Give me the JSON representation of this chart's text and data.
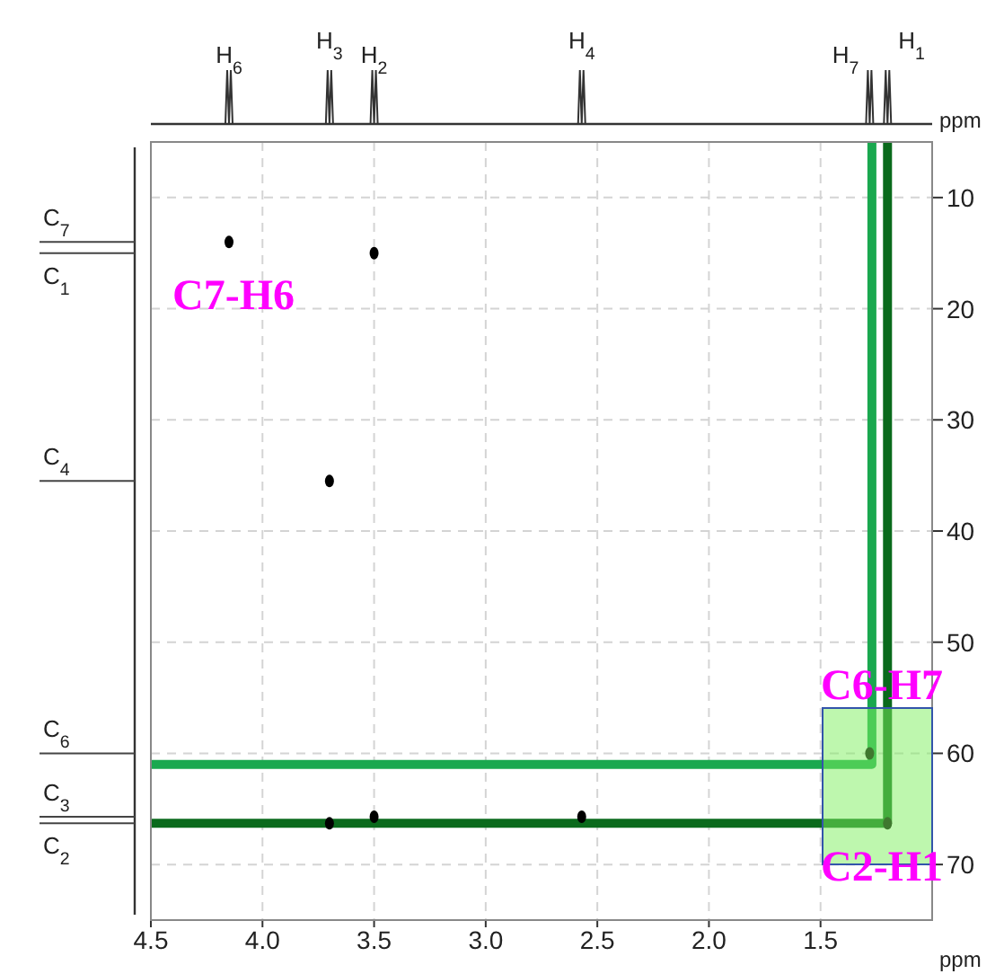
{
  "chart_data": {
    "type": "scatter",
    "xlabel": "ppm",
    "ylabel": "ppm",
    "xlim": [
      4.5,
      1.0
    ],
    "ylim": [
      75,
      5
    ],
    "xticks": [
      4.5,
      {
        "value": 4,
        "label": "4.0"
      },
      3.5,
      {
        "value": 3,
        "label": "3.0"
      },
      2.5,
      {
        "value": 2,
        "label": "2.0"
      },
      1.5
    ],
    "yticks": [
      10,
      20,
      30,
      40,
      50,
      60,
      70
    ],
    "grid": true,
    "series": [
      {
        "type": "line",
        "color": "#1aa84f",
        "marker": "none",
        "x": [
          4.5,
          1.27,
          1.27
        ],
        "values": [
          61,
          61,
          5
        ]
      },
      {
        "type": "line",
        "color": "#0a6a1c",
        "marker": "none",
        "x": [
          4.5,
          1.2,
          1.2
        ],
        "values": [
          66.3,
          66.3,
          5
        ]
      },
      {
        "type": "scatter",
        "color": "#000000",
        "marker": "circle",
        "x": [
          4.15,
          3.5,
          3.7,
          3.7,
          3.5,
          2.57,
          1.28,
          1.2
        ],
        "values": [
          14,
          15,
          35.5,
          66.3,
          65.7,
          65.7,
          60,
          66.3
        ]
      }
    ],
    "annotations": [
      "H$_{6}$",
      "H$_{3}$",
      "H$_{2}$",
      "H$_{4}$",
      "H$_{7}$",
      "H$_{1}$",
      "C$_{7}$",
      "C$_{1}$",
      "C$_{4}$",
      "C$_{6}$",
      "C$_{3}$",
      "C$_{2}$",
      "C7-H6",
      "C6-H7",
      "C2-H1"
    ]
  }
}
